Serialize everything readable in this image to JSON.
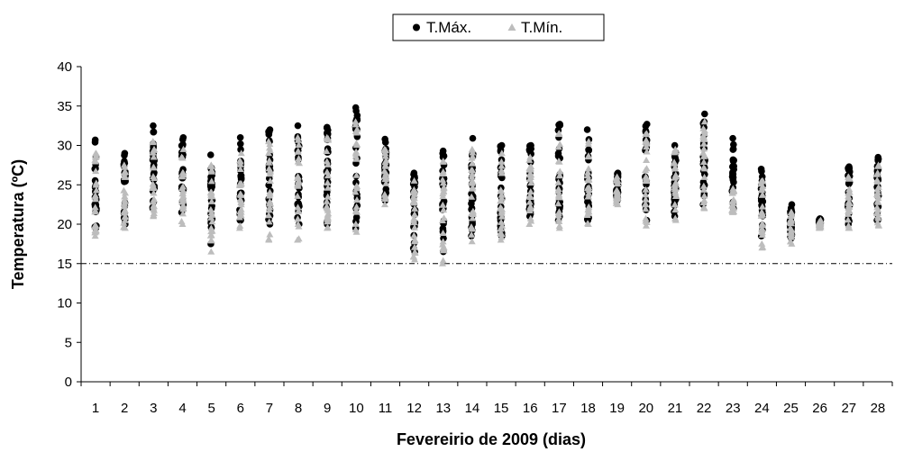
{
  "chart_data": {
    "type": "scatter",
    "title": "",
    "xlabel": "Fevereirio de 2009 (dias)",
    "ylabel": "Temperatura (ºC)",
    "ylim": [
      0,
      40
    ],
    "y_ticks": [
      "0",
      "5",
      "10",
      "15",
      "20",
      "25",
      "30",
      "35",
      "40"
    ],
    "categories": [
      "1",
      "2",
      "3",
      "4",
      "5",
      "6",
      "7",
      "8",
      "9",
      "10",
      "11",
      "12",
      "13",
      "14",
      "15",
      "16",
      "17",
      "18",
      "19",
      "20",
      "21",
      "22",
      "23",
      "24",
      "25",
      "26",
      "27",
      "28"
    ],
    "reference_line": {
      "y": 15,
      "style": "dash-dot"
    },
    "legend_position": "top-center",
    "series": [
      {
        "name": "T.Máx.",
        "marker": "circle",
        "color": "#000000",
        "ranges": [
          [
            19.5,
            30.7
          ],
          [
            20,
            29
          ],
          [
            22,
            32.5
          ],
          [
            21.5,
            31
          ],
          [
            17.5,
            28.8
          ],
          [
            20.5,
            31
          ],
          [
            20,
            32
          ],
          [
            20,
            32.5
          ],
          [
            20,
            32.3
          ],
          [
            19.5,
            34.8
          ],
          [
            23,
            30.8
          ],
          [
            16.5,
            26.5
          ],
          [
            16.5,
            29.3
          ],
          [
            18.5,
            30.9
          ],
          [
            18.5,
            30
          ],
          [
            21,
            30
          ],
          [
            20.5,
            32.7
          ],
          [
            20.5,
            32
          ],
          [
            23,
            26.5
          ],
          [
            20.5,
            32.7
          ],
          [
            21,
            30
          ],
          [
            22.5,
            34
          ],
          [
            22,
            30.9
          ],
          [
            18.5,
            27
          ],
          [
            18.2,
            22.5
          ],
          [
            20,
            20.7
          ],
          [
            20,
            27.3
          ],
          [
            20.5,
            28.5
          ]
        ]
      },
      {
        "name": "T.Mín.",
        "marker": "triangle",
        "color": "#bdbdbd",
        "ranges": [
          [
            18.5,
            29
          ],
          [
            19.5,
            27.5
          ],
          [
            21,
            30.5
          ],
          [
            20,
            29.5
          ],
          [
            16.5,
            27.5
          ],
          [
            19.5,
            29
          ],
          [
            18,
            30.5
          ],
          [
            18,
            31
          ],
          [
            19.5,
            31
          ],
          [
            19,
            33
          ],
          [
            22.5,
            29.5
          ],
          [
            15.5,
            25.5
          ],
          [
            15,
            28
          ],
          [
            17.8,
            29.5
          ],
          [
            18,
            29
          ],
          [
            20,
            28.5
          ],
          [
            19.5,
            31.5
          ],
          [
            20,
            30.5
          ],
          [
            22.5,
            26
          ],
          [
            19.8,
            31.5
          ],
          [
            20.5,
            29.5
          ],
          [
            22,
            33
          ],
          [
            21.5,
            24.5
          ],
          [
            17,
            25.5
          ],
          [
            17.5,
            21.5
          ],
          [
            19.5,
            20.5
          ],
          [
            19.5,
            26
          ],
          [
            19.8,
            27.5
          ]
        ]
      }
    ]
  }
}
